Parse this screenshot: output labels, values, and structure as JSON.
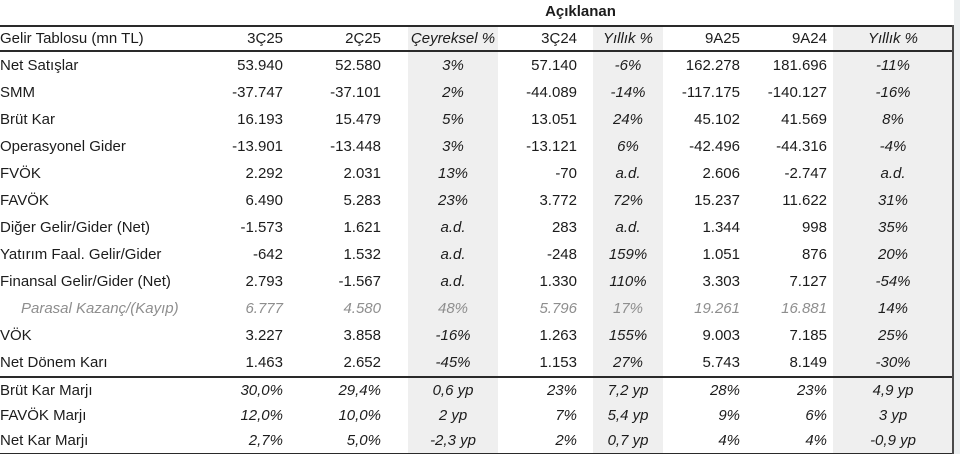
{
  "table": {
    "top_header": "Açıklanan",
    "columns": [
      "Gelir Tablosu (mn TL)",
      "3Ç25",
      "2Ç25",
      "Çeyreksel %",
      "3Ç24",
      "Yıllık %",
      "9A25",
      "9A24",
      "Yıllık %"
    ],
    "rows": [
      {
        "label": "Net Satışlar",
        "values": [
          "53.940",
          "52.580",
          "3%",
          "57.140",
          "-6%",
          "162.278",
          "181.696",
          "-11%"
        ],
        "style": "normal",
        "section": "main"
      },
      {
        "label": "SMM",
        "values": [
          "-37.747",
          "-37.101",
          "2%",
          "-44.089",
          "-14%",
          "-117.175",
          "-140.127",
          "-16%"
        ],
        "style": "normal",
        "section": "main"
      },
      {
        "label": "Brüt Kar",
        "values": [
          "16.193",
          "15.479",
          "5%",
          "13.051",
          "24%",
          "45.102",
          "41.569",
          "8%"
        ],
        "style": "normal",
        "section": "main"
      },
      {
        "label": "Operasyonel Gider",
        "values": [
          "-13.901",
          "-13.448",
          "3%",
          "-13.121",
          "6%",
          "-42.496",
          "-44.316",
          "-4%"
        ],
        "style": "normal",
        "section": "main"
      },
      {
        "label": "FVÖK",
        "values": [
          "2.292",
          "2.031",
          "13%",
          "-70",
          "a.d.",
          "2.606",
          "-2.747",
          "a.d."
        ],
        "style": "normal",
        "section": "main"
      },
      {
        "label": "FAVÖK",
        "values": [
          "6.490",
          "5.283",
          "23%",
          "3.772",
          "72%",
          "15.237",
          "11.622",
          "31%"
        ],
        "style": "normal",
        "section": "main"
      },
      {
        "label": "Diğer Gelir/Gider (Net)",
        "values": [
          "-1.573",
          "1.621",
          "a.d.",
          "283",
          "a.d.",
          "1.344",
          "998",
          "35%"
        ],
        "style": "normal",
        "section": "main"
      },
      {
        "label": "Yatırım Faal. Gelir/Gider",
        "values": [
          "-642",
          "1.532",
          "a.d.",
          "-248",
          "159%",
          "1.051",
          "876",
          "20%"
        ],
        "style": "normal",
        "section": "main"
      },
      {
        "label": "Finansal Gelir/Gider (Net)",
        "values": [
          "2.793",
          "-1.567",
          "a.d.",
          "1.330",
          "110%",
          "3.303",
          "7.127",
          "-54%"
        ],
        "style": "normal",
        "section": "main"
      },
      {
        "label": "Parasal Kazanç/(Kayıp)",
        "values": [
          "6.777",
          "4.580",
          "48%",
          "5.796",
          "17%",
          "19.261",
          "16.881",
          "14%"
        ],
        "style": "muted",
        "section": "main"
      },
      {
        "label": "VÖK",
        "values": [
          "3.227",
          "3.858",
          "-16%",
          "1.263",
          "155%",
          "9.003",
          "7.185",
          "25%"
        ],
        "style": "normal",
        "section": "main"
      },
      {
        "label": "Net Dönem Karı",
        "values": [
          "1.463",
          "2.652",
          "-45%",
          "1.153",
          "27%",
          "5.743",
          "8.149",
          "-30%"
        ],
        "style": "normal",
        "section": "main"
      },
      {
        "label": "Brüt Kar Marjı",
        "values": [
          "30,0%",
          "29,4%",
          "0,6 yp",
          "23%",
          "7,2 yp",
          "28%",
          "23%",
          "4,9 yp"
        ],
        "style": "margin",
        "section": "margins"
      },
      {
        "label": "FAVÖK Marjı",
        "values": [
          "12,0%",
          "10,0%",
          "2 yp",
          "7%",
          "5,4 yp",
          "9%",
          "6%",
          "3 yp"
        ],
        "style": "margin",
        "section": "margins"
      },
      {
        "label": "Net Kar Marjı",
        "values": [
          "2,7%",
          "5,0%",
          "-2,3 yp",
          "2%",
          "0,7 yp",
          "4%",
          "4%",
          "-0,9 yp"
        ],
        "style": "margin",
        "section": "margins"
      }
    ]
  },
  "colors": {
    "text": "#1c1c1c",
    "muted_text": "#8e8e8e",
    "shaded_column_bg": "#efefef",
    "rule": "#2a2a2a",
    "edge_strip": "#eceff0"
  }
}
